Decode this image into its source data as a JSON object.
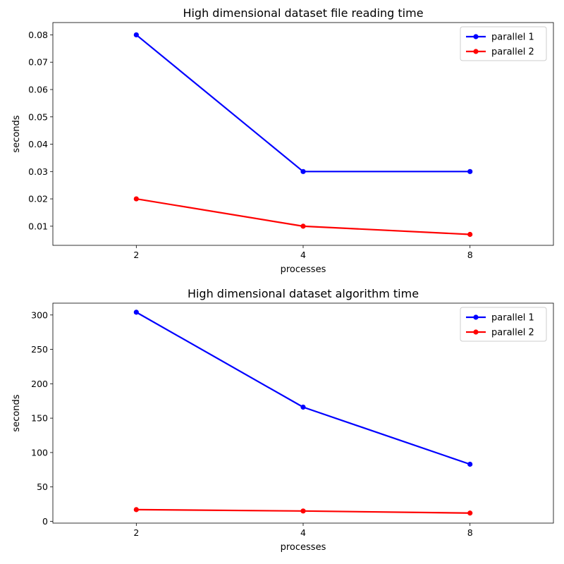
{
  "chart_data": [
    {
      "type": "line",
      "title": "High dimensional dataset file reading time",
      "xlabel": "processes",
      "ylabel": "seconds",
      "categories": [
        "2",
        "4",
        "8"
      ],
      "xlim": [
        -0.5,
        2.5
      ],
      "ylim": [
        0.003,
        0.0845
      ],
      "yticks": [
        0.01,
        0.02,
        0.03,
        0.04,
        0.05,
        0.06,
        0.07,
        0.08
      ],
      "ytick_labels": [
        "0.01",
        "0.02",
        "0.03",
        "0.04",
        "0.05",
        "0.06",
        "0.07",
        "0.08"
      ],
      "grid": false,
      "legend_position": "upper-right",
      "series": [
        {
          "name": "parallel 1",
          "color": "#0000ff",
          "values": [
            0.08,
            0.03,
            0.03
          ]
        },
        {
          "name": "parallel 2",
          "color": "#ff0000",
          "values": [
            0.02,
            0.01,
            0.007
          ]
        }
      ]
    },
    {
      "type": "line",
      "title": "High dimensional dataset algorithm time",
      "xlabel": "processes",
      "ylabel": "seconds",
      "categories": [
        "2",
        "4",
        "8"
      ],
      "xlim": [
        -0.5,
        2.5
      ],
      "ylim": [
        -2.6,
        317.2
      ],
      "yticks": [
        0,
        50,
        100,
        150,
        200,
        250,
        300
      ],
      "ytick_labels": [
        "0",
        "50",
        "100",
        "150",
        "200",
        "250",
        "300"
      ],
      "grid": false,
      "legend_position": "upper-right",
      "series": [
        {
          "name": "parallel 1",
          "color": "#0000ff",
          "values": [
            304,
            166,
            83
          ]
        },
        {
          "name": "parallel 2",
          "color": "#ff0000",
          "values": [
            17,
            15,
            12
          ]
        }
      ]
    }
  ]
}
